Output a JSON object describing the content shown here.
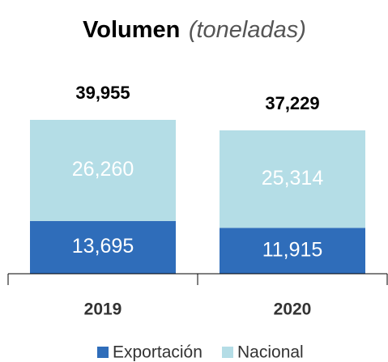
{
  "chart_data": {
    "type": "stacked_bar",
    "title": "Volumen",
    "title_unit": "(toneladas)",
    "categories": [
      "2019",
      "2020"
    ],
    "series": [
      {
        "name": "Exportación",
        "color": "#2f6dba",
        "values": [
          13695,
          11915
        ],
        "value_labels": [
          "13,695",
          "11,915"
        ]
      },
      {
        "name": "Nacional",
        "color": "#b4dde6",
        "values": [
          26260,
          25314
        ],
        "value_labels": [
          "26,260",
          "25,314"
        ]
      }
    ],
    "totals": [
      39955,
      37229
    ],
    "total_labels": [
      "39,955",
      "37,229"
    ],
    "legend": "bottom"
  }
}
